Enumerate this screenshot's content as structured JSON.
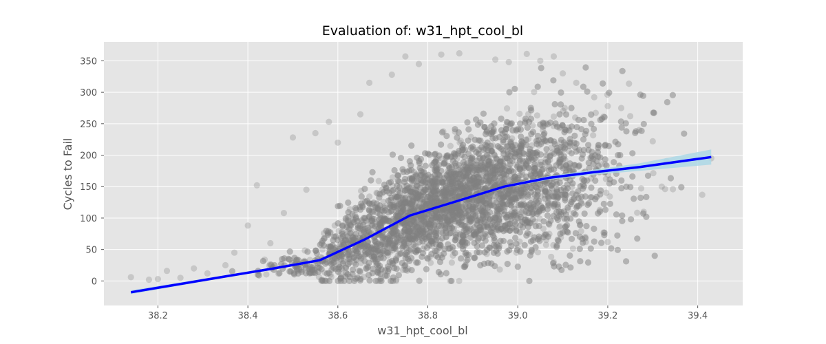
{
  "chart_data": {
    "type": "scatter",
    "title": "Evaluation of: w31_hpt_cool_bl",
    "xlabel": "w31_hpt_cool_bl",
    "ylabel": "Cycles to Fail",
    "xlim": [
      38.08,
      39.5
    ],
    "ylim": [
      -39,
      380
    ],
    "x_ticks": [
      "38.2",
      "38.4",
      "38.6",
      "38.8",
      "39.0",
      "39.2",
      "39.4"
    ],
    "y_ticks": [
      "0",
      "50",
      "100",
      "150",
      "200",
      "250",
      "300",
      "350"
    ],
    "grid": true,
    "style": "ggplot",
    "colors": {
      "background": "#e5e5e5",
      "grid": "#ffffff",
      "points": "#808080",
      "fit_line": "#0000ff",
      "confidence_band": "#add8e6"
    },
    "series": [
      {
        "kind": "scatter",
        "point_alpha": 0.3,
        "sample_points": [
          {
            "x": 38.14,
            "y": 6
          },
          {
            "x": 38.18,
            "y": 2
          },
          {
            "x": 38.2,
            "y": 3
          },
          {
            "x": 38.22,
            "y": 16
          },
          {
            "x": 38.25,
            "y": 5
          },
          {
            "x": 38.28,
            "y": 20
          },
          {
            "x": 38.31,
            "y": 12
          },
          {
            "x": 38.35,
            "y": 25
          },
          {
            "x": 38.37,
            "y": 45
          },
          {
            "x": 38.4,
            "y": 88
          },
          {
            "x": 38.42,
            "y": 152
          },
          {
            "x": 38.45,
            "y": 60
          },
          {
            "x": 38.48,
            "y": 108
          },
          {
            "x": 38.5,
            "y": 228
          },
          {
            "x": 38.53,
            "y": 145
          },
          {
            "x": 38.55,
            "y": 235
          },
          {
            "x": 38.58,
            "y": 253
          },
          {
            "x": 38.6,
            "y": 220
          },
          {
            "x": 38.65,
            "y": 265
          },
          {
            "x": 38.67,
            "y": 315
          },
          {
            "x": 38.72,
            "y": 328
          },
          {
            "x": 38.75,
            "y": 357
          },
          {
            "x": 38.78,
            "y": 345
          },
          {
            "x": 38.83,
            "y": 360
          },
          {
            "x": 38.87,
            "y": 362
          },
          {
            "x": 38.95,
            "y": 352
          },
          {
            "x": 38.98,
            "y": 348
          },
          {
            "x": 39.02,
            "y": 361
          },
          {
            "x": 39.05,
            "y": 350
          },
          {
            "x": 39.08,
            "y": 357
          },
          {
            "x": 39.1,
            "y": 330
          },
          {
            "x": 39.13,
            "y": 315
          },
          {
            "x": 39.17,
            "y": 292
          },
          {
            "x": 39.2,
            "y": 278
          },
          {
            "x": 39.23,
            "y": 275
          },
          {
            "x": 39.25,
            "y": 262
          },
          {
            "x": 39.27,
            "y": 240
          },
          {
            "x": 39.3,
            "y": 222
          },
          {
            "x": 39.32,
            "y": 150
          },
          {
            "x": 39.28,
            "y": 110
          },
          {
            "x": 39.41,
            "y": 137
          },
          {
            "x": 39.43,
            "y": 195
          },
          {
            "x": 39.15,
            "y": 70
          },
          {
            "x": 39.2,
            "y": 62
          },
          {
            "x": 39.08,
            "y": 30
          },
          {
            "x": 38.96,
            "y": 18
          },
          {
            "x": 38.85,
            "y": 0
          },
          {
            "x": 38.73,
            "y": 2
          }
        ]
      },
      {
        "kind": "line",
        "x": [
          38.14,
          38.34,
          38.45,
          38.56,
          38.66,
          38.76,
          38.87,
          38.97,
          39.07,
          39.17,
          39.27,
          39.43
        ],
        "y": [
          -18,
          6,
          19,
          33,
          66,
          104,
          128,
          150,
          164,
          173,
          181,
          197
        ],
        "band_halfwidth": [
          3,
          2,
          2,
          2,
          2,
          2,
          2,
          2,
          3,
          4,
          6,
          12
        ]
      }
    ]
  }
}
